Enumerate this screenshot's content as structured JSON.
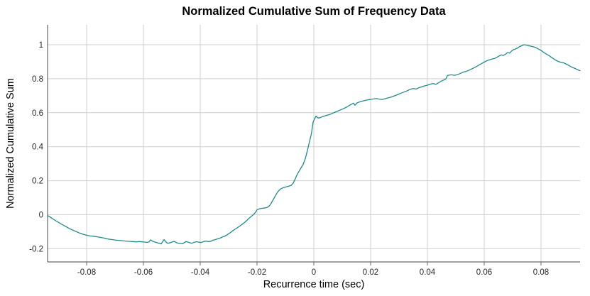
{
  "chart_data": {
    "type": "line",
    "title": "Normalized Cumulative Sum of Frequency Data",
    "xlabel": "Recurrence time (sec)",
    "ylabel": "Normalized Cumulative Sum",
    "xlim": [
      -0.09375,
      0.09375
    ],
    "ylim": [
      -0.278,
      1.117
    ],
    "grid": true,
    "legend": "none",
    "line_color": "#1e8b8d",
    "grid_color": "#cfcfcf",
    "axis_color": "#666666",
    "x_ticks": {
      "values": [
        -0.08,
        -0.06,
        -0.04,
        -0.02,
        0,
        0.02,
        0.04,
        0.06,
        0.08
      ],
      "labels": [
        "-0.08",
        "-0.06",
        "-0.04",
        "-0.02",
        "0",
        "0.02",
        "0.04",
        "0.06",
        "0.08"
      ]
    },
    "y_ticks": {
      "values": [
        1,
        0.8,
        0.6,
        0.4,
        0.2,
        0,
        -0.2
      ],
      "labels": [
        "1",
        "0.8",
        "0.6",
        "0.4",
        "0.2",
        "0",
        "-0.2"
      ]
    },
    "series": [
      {
        "name": "normalized cumulative sum",
        "x": [
          -0.09375,
          -0.0925,
          -0.09125,
          -0.09,
          -0.08875,
          -0.0875,
          -0.08625,
          -0.085,
          -0.08375,
          -0.0825,
          -0.08125,
          -0.08,
          -0.07875,
          -0.0775,
          -0.07625,
          -0.075,
          -0.07375,
          -0.0725,
          -0.07125,
          -0.07,
          -0.06875,
          -0.0675,
          -0.06625,
          -0.065,
          -0.06375,
          -0.0625,
          -0.06125,
          -0.05975,
          -0.05875,
          -0.058,
          -0.0575,
          -0.05675,
          -0.0555,
          -0.0545,
          -0.05375,
          -0.05275,
          -0.052,
          -0.0515,
          -0.0505,
          -0.04925,
          -0.048,
          -0.047,
          -0.04625,
          -0.045,
          -0.044,
          -0.043,
          -0.042,
          -0.04125,
          -0.0405,
          -0.03975,
          -0.03875,
          -0.038,
          -0.037,
          -0.03625,
          -0.0355,
          -0.03475,
          -0.03375,
          -0.033,
          -0.03225,
          -0.03125,
          -0.0305,
          -0.02925,
          -0.028,
          -0.02675,
          -0.0255,
          -0.02425,
          -0.0235,
          -0.02275,
          -0.022,
          -0.02125,
          -0.0205,
          -0.02,
          -0.01925,
          -0.0185,
          -0.01775,
          -0.01675,
          -0.016,
          -0.0155,
          -0.015,
          -0.01425,
          -0.0135,
          -0.01275,
          -0.012,
          -0.01125,
          -0.0105,
          -0.00975,
          -0.009,
          -0.008,
          -0.00725,
          -0.0065,
          -0.006,
          -0.00525,
          -0.0045,
          -0.00375,
          -0.003,
          -0.00225,
          -0.0015,
          -0.001,
          -0.00075,
          -0.0005,
          -0.00025,
          0.00025,
          0.00075,
          0.00125,
          0.00175,
          0.0025,
          0.00325,
          0.004,
          0.00475,
          0.0055,
          0.00625,
          0.007,
          0.00775,
          0.0085,
          0.0095,
          0.0105,
          0.0115,
          0.0125,
          0.01325,
          0.014,
          0.0145,
          0.01525,
          0.016,
          0.01675,
          0.0175,
          0.0185,
          0.0195,
          0.02025,
          0.021,
          0.022,
          0.023,
          0.024,
          0.025,
          0.026,
          0.027,
          0.028,
          0.029,
          0.03,
          0.031,
          0.032,
          0.033,
          0.034,
          0.035,
          0.036,
          0.037,
          0.038,
          0.039,
          0.04,
          0.041,
          0.042,
          0.043,
          0.044,
          0.045,
          0.046,
          0.0465,
          0.047,
          0.0475,
          0.0485,
          0.0495,
          0.0505,
          0.0515,
          0.0525,
          0.0535,
          0.0545,
          0.0555,
          0.0565,
          0.0575,
          0.0585,
          0.0595,
          0.06025,
          0.061,
          0.062,
          0.063,
          0.06375,
          0.0645,
          0.06525,
          0.066,
          0.06675,
          0.0675,
          0.06825,
          0.069,
          0.0695,
          0.07025,
          0.071,
          0.07175,
          0.0725,
          0.07325,
          0.074,
          0.07475,
          0.0755,
          0.07625,
          0.077,
          0.078,
          0.079,
          0.08,
          0.081,
          0.082,
          0.083,
          0.084,
          0.085,
          0.086,
          0.087,
          0.088,
          0.089,
          0.09,
          0.091,
          0.092,
          0.093,
          0.09375
        ],
        "y": [
          -0.005,
          -0.018,
          -0.032,
          -0.044,
          -0.057,
          -0.068,
          -0.08,
          -0.09,
          -0.099,
          -0.108,
          -0.115,
          -0.121,
          -0.125,
          -0.127,
          -0.13,
          -0.134,
          -0.138,
          -0.143,
          -0.146,
          -0.149,
          -0.151,
          -0.153,
          -0.155,
          -0.157,
          -0.158,
          -0.16,
          -0.158,
          -0.161,
          -0.163,
          -0.16,
          -0.148,
          -0.157,
          -0.163,
          -0.168,
          -0.172,
          -0.147,
          -0.162,
          -0.168,
          -0.165,
          -0.157,
          -0.167,
          -0.17,
          -0.171,
          -0.158,
          -0.163,
          -0.168,
          -0.162,
          -0.159,
          -0.162,
          -0.164,
          -0.158,
          -0.155,
          -0.158,
          -0.156,
          -0.15,
          -0.147,
          -0.141,
          -0.138,
          -0.132,
          -0.126,
          -0.118,
          -0.104,
          -0.088,
          -0.075,
          -0.06,
          -0.044,
          -0.032,
          -0.02,
          -0.01,
          0.0,
          0.015,
          0.028,
          0.034,
          0.037,
          0.038,
          0.041,
          0.047,
          0.055,
          0.068,
          0.09,
          0.112,
          0.133,
          0.148,
          0.155,
          0.16,
          0.164,
          0.167,
          0.172,
          0.186,
          0.212,
          0.232,
          0.254,
          0.276,
          0.296,
          0.33,
          0.378,
          0.432,
          0.465,
          0.488,
          0.515,
          0.545,
          0.563,
          0.58,
          0.572,
          0.568,
          0.573,
          0.578,
          0.582,
          0.586,
          0.589,
          0.594,
          0.6,
          0.605,
          0.61,
          0.617,
          0.624,
          0.633,
          0.643,
          0.65,
          0.656,
          0.644,
          0.658,
          0.663,
          0.667,
          0.67,
          0.674,
          0.677,
          0.679,
          0.681,
          0.683,
          0.68,
          0.678,
          0.682,
          0.687,
          0.691,
          0.697,
          0.703,
          0.71,
          0.717,
          0.723,
          0.73,
          0.738,
          0.742,
          0.739,
          0.747,
          0.753,
          0.758,
          0.762,
          0.768,
          0.772,
          0.767,
          0.777,
          0.787,
          0.794,
          0.799,
          0.817,
          0.821,
          0.823,
          0.82,
          0.824,
          0.83,
          0.838,
          0.842,
          0.849,
          0.857,
          0.865,
          0.874,
          0.884,
          0.893,
          0.9,
          0.906,
          0.912,
          0.917,
          0.92,
          0.926,
          0.934,
          0.94,
          0.937,
          0.944,
          0.954,
          0.951,
          0.961,
          0.971,
          0.975,
          0.981,
          0.989,
          0.994,
          1.0,
          0.998,
          0.995,
          0.992,
          0.989,
          0.984,
          0.976,
          0.967,
          0.954,
          0.944,
          0.934,
          0.922,
          0.911,
          0.902,
          0.897,
          0.893,
          0.885,
          0.876,
          0.867,
          0.86,
          0.852,
          0.847
        ]
      }
    ]
  }
}
